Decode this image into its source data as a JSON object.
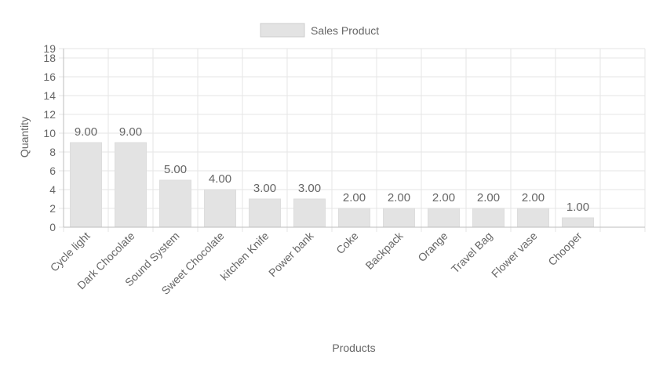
{
  "chart_data": {
    "type": "bar",
    "categories": [
      "Cycle light",
      "Dark Chocolate",
      "Sound System",
      "Sweet Chocolate",
      "kitchen Knife",
      "Power bank",
      "Coke",
      "Backpack",
      "Orange",
      "Travel Bag",
      "Flower vase",
      "Chooper"
    ],
    "series": [
      {
        "name": "Sales Product",
        "values": [
          9,
          9,
          5,
          4,
          3,
          3,
          2,
          2,
          2,
          2,
          2,
          1
        ]
      }
    ],
    "value_labels": [
      "9.00",
      "9.00",
      "5.00",
      "4.00",
      "3.00",
      "3.00",
      "2.00",
      "2.00",
      "2.00",
      "2.00",
      "2.00",
      "1.00"
    ],
    "xlabel": "Products",
    "ylabel": "Quantity",
    "ylim": [
      0,
      19
    ],
    "yticks": [
      0,
      2,
      4,
      6,
      8,
      10,
      12,
      14,
      16,
      18,
      19
    ],
    "grid": true,
    "legend": "top-center",
    "colors": {
      "bar_fill": "#e3e3e3",
      "bar_stroke": "#dddddd",
      "grid": "#e6e6e6",
      "axis": "#bdbdbd",
      "text": "#666666"
    }
  }
}
